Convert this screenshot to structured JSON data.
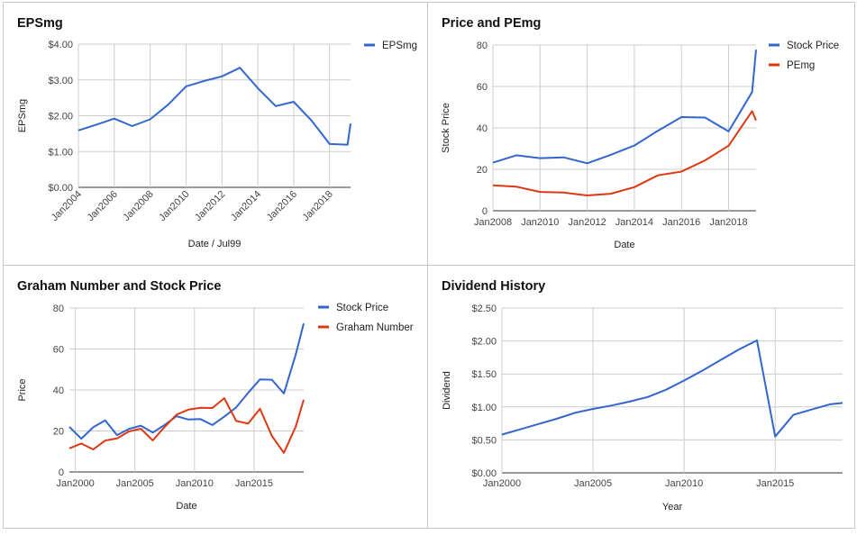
{
  "colors": {
    "blue": "#3366cc",
    "red": "#dc3912",
    "grid": "#cccccc",
    "axis": "#333333"
  },
  "chart_data": [
    {
      "type": "line",
      "title": "EPSmg",
      "xlabel": "Date / Jul99",
      "ylabel": "EPSmg",
      "x_type": "date",
      "xlim": [
        "2004-01",
        "2019-03"
      ],
      "ylim": [
        0,
        4
      ],
      "y_ticks": [
        "$0.00",
        "$1.00",
        "$2.00",
        "$3.00",
        "$4.00"
      ],
      "y_tick_values": [
        0,
        1,
        2,
        3,
        4
      ],
      "x_ticks": [
        "Jan2004",
        "Jan2006",
        "Jan2008",
        "Jan2010",
        "Jan2012",
        "Jan2014",
        "Jan2016",
        "Jan2018"
      ],
      "x_tick_values": [
        "2004-01",
        "2006-01",
        "2008-01",
        "2010-01",
        "2012-01",
        "2014-01",
        "2016-01",
        "2018-01"
      ],
      "x_tick_rotation": -45,
      "legend_position": "top-right",
      "series": [
        {
          "name": "EPSmg",
          "color": "#3366cc",
          "points": [
            [
              "2004-01",
              1.59
            ],
            [
              "2005-01",
              1.75
            ],
            [
              "2006-01",
              1.92
            ],
            [
              "2007-01",
              1.71
            ],
            [
              "2008-01",
              1.9
            ],
            [
              "2009-01",
              2.31
            ],
            [
              "2010-01",
              2.82
            ],
            [
              "2011-01",
              2.97
            ],
            [
              "2012-01",
              3.1
            ],
            [
              "2013-01",
              3.34
            ],
            [
              "2014-01",
              2.77
            ],
            [
              "2015-01",
              2.27
            ],
            [
              "2016-01",
              2.39
            ],
            [
              "2017-01",
              1.86
            ],
            [
              "2018-01",
              1.21
            ],
            [
              "2019-01",
              1.19
            ],
            [
              "2019-03",
              1.78
            ]
          ]
        }
      ]
    },
    {
      "type": "line",
      "title": "Price and PEmg",
      "xlabel": "Date",
      "ylabel": "Stock Price",
      "x_type": "date",
      "xlim": [
        "2008-01",
        "2019-03"
      ],
      "ylim": [
        0,
        80
      ],
      "y_ticks": [
        "0",
        "20",
        "40",
        "60",
        "80"
      ],
      "y_tick_values": [
        0,
        20,
        40,
        60,
        80
      ],
      "x_ticks": [
        "Jan2008",
        "Jan2010",
        "Jan2012",
        "Jan2014",
        "Jan2016",
        "Jan2018"
      ],
      "x_tick_values": [
        "2008-01",
        "2010-01",
        "2012-01",
        "2014-01",
        "2016-01",
        "2018-01"
      ],
      "x_tick_rotation": 0,
      "legend_position": "top-right",
      "series": [
        {
          "name": "Stock Price",
          "color": "#3366cc",
          "points": [
            [
              "2008-01",
              23.2
            ],
            [
              "2009-01",
              26.8
            ],
            [
              "2010-01",
              25.4
            ],
            [
              "2011-01",
              25.8
            ],
            [
              "2012-01",
              22.9
            ],
            [
              "2013-01",
              27.0
            ],
            [
              "2014-01",
              31.5
            ],
            [
              "2015-01",
              38.6
            ],
            [
              "2016-01",
              45.2
            ],
            [
              "2017-01",
              45.0
            ],
            [
              "2018-01",
              38.3
            ],
            [
              "2019-01",
              57.3
            ],
            [
              "2019-03",
              77.8
            ]
          ]
        },
        {
          "name": "PEmg",
          "color": "#dc3912",
          "points": [
            [
              "2008-01",
              12.3
            ],
            [
              "2009-01",
              11.6
            ],
            [
              "2010-01",
              9.1
            ],
            [
              "2011-01",
              8.8
            ],
            [
              "2012-01",
              7.4
            ],
            [
              "2013-01",
              8.2
            ],
            [
              "2014-01",
              11.4
            ],
            [
              "2015-01",
              17.1
            ],
            [
              "2016-01",
              18.9
            ],
            [
              "2017-01",
              24.3
            ],
            [
              "2018-01",
              31.4
            ],
            [
              "2019-01",
              48.1
            ],
            [
              "2019-03",
              43.6
            ]
          ]
        }
      ]
    },
    {
      "type": "line",
      "title": "Graham Number and Stock Price",
      "xlabel": "Date",
      "ylabel": "Price",
      "x_type": "date",
      "xlim": [
        "1999-07",
        "2019-03"
      ],
      "ylim": [
        0,
        80
      ],
      "y_ticks": [
        "0",
        "20",
        "40",
        "60",
        "80"
      ],
      "y_tick_values": [
        0,
        20,
        40,
        60,
        80
      ],
      "x_ticks": [
        "Jan2000",
        "Jan2005",
        "Jan2010",
        "Jan2015"
      ],
      "x_tick_values": [
        "2000-01",
        "2005-01",
        "2010-01",
        "2015-01"
      ],
      "x_tick_rotation": 0,
      "legend_position": "top-right",
      "series": [
        {
          "name": "Stock Price",
          "color": "#3366cc",
          "points": [
            [
              "1999-07",
              22.0
            ],
            [
              "2000-07",
              16.2
            ],
            [
              "2001-07",
              21.8
            ],
            [
              "2002-07",
              25.2
            ],
            [
              "2003-07",
              18.0
            ],
            [
              "2004-07",
              21.0
            ],
            [
              "2005-07",
              22.6
            ],
            [
              "2006-07",
              19.2
            ],
            [
              "2007-07",
              23.0
            ],
            [
              "2008-07",
              27.2
            ],
            [
              "2009-07",
              25.6
            ],
            [
              "2010-07",
              25.8
            ],
            [
              "2011-07",
              22.9
            ],
            [
              "2012-07",
              27.0
            ],
            [
              "2013-07",
              31.5
            ],
            [
              "2014-07",
              38.6
            ],
            [
              "2015-07",
              45.2
            ],
            [
              "2016-07",
              45.0
            ],
            [
              "2017-07",
              38.3
            ],
            [
              "2018-07",
              57.3
            ],
            [
              "2019-03",
              72.5
            ]
          ]
        },
        {
          "name": "Graham Number",
          "color": "#dc3912",
          "points": [
            [
              "1999-07",
              11.5
            ],
            [
              "2000-07",
              13.9
            ],
            [
              "2001-07",
              11.0
            ],
            [
              "2002-07",
              15.3
            ],
            [
              "2003-07",
              16.4
            ],
            [
              "2004-07",
              19.8
            ],
            [
              "2005-07",
              21.1
            ],
            [
              "2006-07",
              15.4
            ],
            [
              "2007-07",
              22.0
            ],
            [
              "2008-07",
              28.0
            ],
            [
              "2009-07",
              30.4
            ],
            [
              "2010-07",
              31.3
            ],
            [
              "2011-07",
              31.2
            ],
            [
              "2012-07",
              36.0
            ],
            [
              "2013-07",
              24.9
            ],
            [
              "2014-07",
              23.6
            ],
            [
              "2015-07",
              30.8
            ],
            [
              "2016-07",
              17.6
            ],
            [
              "2017-07",
              9.3
            ],
            [
              "2018-07",
              22.1
            ],
            [
              "2019-03",
              35.2
            ]
          ]
        }
      ]
    },
    {
      "type": "line",
      "title": "Dividend History",
      "xlabel": "Year",
      "ylabel": "Dividend",
      "x_type": "year",
      "xlim": [
        2000,
        2018.7
      ],
      "ylim": [
        0,
        2.5
      ],
      "y_ticks": [
        "$0.00",
        "$0.50",
        "$1.00",
        "$1.50",
        "$2.00",
        "$2.50"
      ],
      "y_tick_values": [
        0,
        0.5,
        1,
        1.5,
        2,
        2.5
      ],
      "x_ticks": [
        "Jan2000",
        "Jan2005",
        "Jan2010",
        "Jan2015"
      ],
      "x_tick_values": [
        2000,
        2005,
        2010,
        2015
      ],
      "x_tick_rotation": 0,
      "legend_position": "none",
      "series": [
        {
          "name": "",
          "color": "#3366cc",
          "points": [
            [
              2000,
              0.58
            ],
            [
              2001,
              0.66
            ],
            [
              2002,
              0.74
            ],
            [
              2003,
              0.82
            ],
            [
              2004,
              0.91
            ],
            [
              2005,
              0.97
            ],
            [
              2006,
              1.02
            ],
            [
              2007,
              1.08
            ],
            [
              2008,
              1.15
            ],
            [
              2009,
              1.26
            ],
            [
              2010,
              1.4
            ],
            [
              2011,
              1.55
            ],
            [
              2012,
              1.71
            ],
            [
              2013,
              1.87
            ],
            [
              2014,
              2.01
            ],
            [
              2015,
              0.55
            ],
            [
              2016,
              0.88
            ],
            [
              2017,
              0.96
            ],
            [
              2018,
              1.04
            ],
            [
              2018.7,
              1.06
            ]
          ]
        }
      ]
    }
  ]
}
